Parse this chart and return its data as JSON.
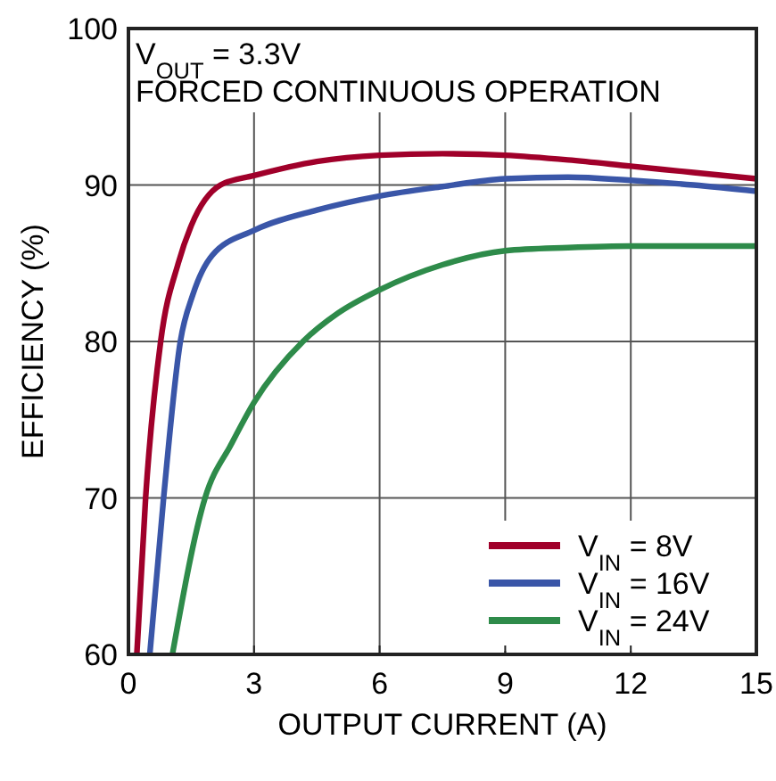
{
  "chart_data": {
    "type": "line",
    "xlabel": "OUTPUT CURRENT (A)",
    "ylabel": "EFFICIENCY (%)",
    "annotations": [
      "V$_{OUT}$ = 3.3V",
      "FORCED CONTINUOUS OPERATION"
    ],
    "xlim": [
      0,
      15
    ],
    "ylim": [
      60,
      100
    ],
    "xticks": [
      0,
      3,
      6,
      9,
      12,
      15
    ],
    "yticks": [
      60,
      70,
      80,
      90,
      100
    ],
    "grid": true,
    "legend": "bottom right",
    "line_style": "solid",
    "series": [
      {
        "name": "V$_{IN}$ = 8V",
        "color": "#a0002a",
        "x": [
          0.2,
          0.41,
          0.77,
          1.19,
          1.5,
          2.2,
          3,
          4.5,
          6,
          7.5,
          9,
          10.5,
          12,
          13.5,
          15
        ],
        "values": [
          60,
          70,
          80,
          85,
          87.4,
          90,
          90.6,
          91.5,
          91.9,
          92,
          91.9,
          91.6,
          91.2,
          90.8,
          90.4
        ]
      },
      {
        "name": "V$_{IN}$ = 16V",
        "color": "#3a56a8",
        "x": [
          0.51,
          0.84,
          1.24,
          1.54,
          2,
          3,
          4.5,
          6,
          7.5,
          9,
          10.5,
          12,
          13.5,
          15
        ],
        "values": [
          60,
          70,
          80,
          83,
          85.5,
          87.1,
          88.4,
          89.3,
          89.9,
          90.4,
          90.5,
          90.3,
          90,
          89.6
        ]
      },
      {
        "name": "V$_{IN}$ = 24V",
        "color": "#2e8b4a",
        "x": [
          1.05,
          1.83,
          2.47,
          3,
          4.17,
          5,
          6,
          7.5,
          9,
          10.5,
          12,
          13.5,
          15
        ],
        "values": [
          60,
          70,
          73.5,
          76.1,
          80,
          81.8,
          83.3,
          84.9,
          85.8,
          86,
          86.1,
          86.1,
          86.1
        ]
      }
    ]
  }
}
